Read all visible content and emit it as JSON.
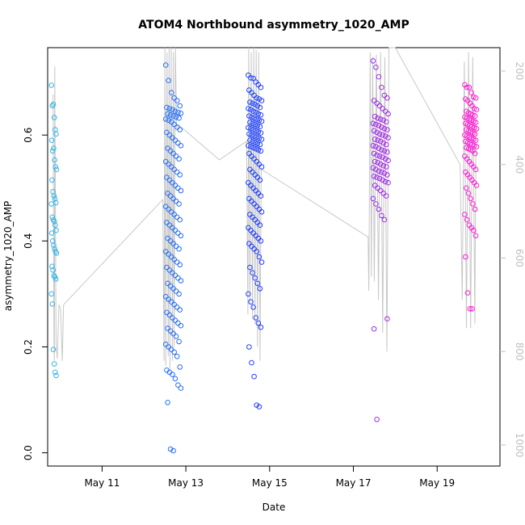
{
  "chart_data": {
    "type": "scatter",
    "title": "ATOM4 Northbound asymmetry_1020_AMP",
    "xlabel": "Date",
    "ylabel": "asymmetry_1020_AMP",
    "xlim": [
      9.7,
      20.5
    ],
    "ylim": [
      -0.025,
      0.765
    ],
    "x_ticks": [
      {
        "value": 11,
        "label": "May 11"
      },
      {
        "value": 13,
        "label": "May 13"
      },
      {
        "value": 15,
        "label": "May 15"
      },
      {
        "value": 17,
        "label": "May 17"
      },
      {
        "value": 19,
        "label": "May 19"
      }
    ],
    "y_ticks": [
      {
        "value": 0.0,
        "label": "0.0"
      },
      {
        "value": 0.2,
        "label": "0.2"
      },
      {
        "value": 0.4,
        "label": "0.4"
      },
      {
        "value": 0.6,
        "label": "0.6"
      }
    ],
    "secondary_axis": {
      "side": "right",
      "reversed": true,
      "ylim": [
        1045,
        150
      ],
      "ticks": [
        {
          "value": 200,
          "label": "200"
        },
        {
          "value": 400,
          "label": "400"
        },
        {
          "value": 600,
          "label": "600"
        },
        {
          "value": 800,
          "label": "800"
        },
        {
          "value": 1000,
          "label": "1000"
        }
      ],
      "color": "#c0c0c0"
    },
    "depth_line": [
      [
        9.83,
        250
      ],
      [
        9.85,
        780
      ],
      [
        9.86,
        820
      ],
      [
        9.87,
        190
      ],
      [
        9.9,
        780
      ],
      [
        9.93,
        815
      ],
      [
        9.97,
        700
      ],
      [
        10.01,
        710
      ],
      [
        10.05,
        820
      ],
      [
        10.08,
        700
      ],
      [
        12.45,
        475
      ],
      [
        12.48,
        820
      ],
      [
        12.5,
        150
      ],
      [
        12.52,
        830
      ],
      [
        12.55,
        160
      ],
      [
        12.58,
        810
      ],
      [
        12.6,
        150
      ],
      [
        12.62,
        840
      ],
      [
        12.65,
        150
      ],
      [
        12.68,
        820
      ],
      [
        12.7,
        160
      ],
      [
        12.72,
        790
      ],
      [
        12.75,
        150
      ],
      [
        12.78,
        320
      ],
      [
        12.82,
        315
      ],
      [
        13.8,
        390
      ],
      [
        14.45,
        350
      ],
      [
        14.48,
        720
      ],
      [
        14.5,
        150
      ],
      [
        14.53,
        700
      ],
      [
        14.56,
        160
      ],
      [
        14.59,
        730
      ],
      [
        14.62,
        150
      ],
      [
        14.65,
        740
      ],
      [
        14.68,
        155
      ],
      [
        14.71,
        790
      ],
      [
        14.74,
        160
      ],
      [
        14.77,
        820
      ],
      [
        14.8,
        410
      ],
      [
        17.35,
        555
      ],
      [
        17.37,
        670
      ],
      [
        17.4,
        160
      ],
      [
        17.43,
        640
      ],
      [
        17.46,
        170
      ],
      [
        17.5,
        650
      ],
      [
        17.55,
        165
      ],
      [
        17.6,
        690
      ],
      [
        17.65,
        160
      ],
      [
        17.7,
        760
      ],
      [
        17.75,
        170
      ],
      [
        17.8,
        800
      ],
      [
        17.85,
        140
      ],
      [
        18.0,
        150
      ],
      [
        19.55,
        400
      ],
      [
        19.6,
        690
      ],
      [
        19.65,
        180
      ],
      [
        19.7,
        750
      ],
      [
        19.75,
        160
      ],
      [
        19.8,
        750
      ],
      [
        19.85,
        170
      ],
      [
        19.9,
        740
      ],
      [
        19.93,
        300
      ]
    ],
    "color_scale": {
      "start": "#33b5e8",
      "mid": "#1e3cff",
      "end": "#ff1ed2"
    },
    "clusters": [
      {
        "day": 9.85,
        "width": 0.12,
        "values": [
          0.694,
          0.655,
          0.658,
          0.633,
          0.61,
          0.602,
          0.59,
          0.57,
          0.575,
          0.553,
          0.54,
          0.535,
          0.515,
          0.493,
          0.485,
          0.48,
          0.472,
          0.47,
          0.445,
          0.44,
          0.437,
          0.43,
          0.42,
          0.415,
          0.4,
          0.392,
          0.385,
          0.38,
          0.377,
          0.352,
          0.345,
          0.334,
          0.332,
          0.328,
          0.3,
          0.281,
          0.195,
          0.168,
          0.152,
          0.146
        ]
      },
      {
        "day": 12.7,
        "width": 0.36,
        "values": [
          0.732,
          0.703,
          0.68,
          0.67,
          0.665,
          0.655,
          0.652,
          0.65,
          0.648,
          0.645,
          0.643,
          0.641,
          0.64,
          0.638,
          0.636,
          0.634,
          0.632,
          0.63,
          0.628,
          0.625,
          0.62,
          0.615,
          0.61,
          0.605,
          0.6,
          0.595,
          0.59,
          0.585,
          0.58,
          0.575,
          0.57,
          0.565,
          0.56,
          0.555,
          0.55,
          0.545,
          0.54,
          0.535,
          0.53,
          0.525,
          0.52,
          0.515,
          0.51,
          0.505,
          0.5,
          0.495,
          0.49,
          0.485,
          0.48,
          0.475,
          0.47,
          0.465,
          0.46,
          0.455,
          0.45,
          0.445,
          0.44,
          0.435,
          0.43,
          0.425,
          0.42,
          0.415,
          0.41,
          0.405,
          0.4,
          0.395,
          0.39,
          0.385,
          0.38,
          0.375,
          0.37,
          0.365,
          0.36,
          0.355,
          0.35,
          0.345,
          0.34,
          0.335,
          0.33,
          0.325,
          0.32,
          0.315,
          0.31,
          0.305,
          0.3,
          0.295,
          0.29,
          0.285,
          0.28,
          0.275,
          0.27,
          0.265,
          0.26,
          0.255,
          0.25,
          0.245,
          0.24,
          0.235,
          0.23,
          0.225,
          0.22,
          0.21,
          0.205,
          0.2,
          0.195,
          0.19,
          0.182,
          0.162,
          0.156,
          0.152,
          0.148,
          0.14,
          0.128,
          0.122,
          0.095,
          0.007,
          0.004
        ]
      },
      {
        "day": 14.65,
        "width": 0.32,
        "values": [
          0.713,
          0.708,
          0.707,
          0.7,
          0.695,
          0.69,
          0.685,
          0.68,
          0.675,
          0.67,
          0.668,
          0.665,
          0.662,
          0.66,
          0.658,
          0.655,
          0.652,
          0.65,
          0.648,
          0.645,
          0.643,
          0.64,
          0.638,
          0.636,
          0.634,
          0.632,
          0.63,
          0.628,
          0.626,
          0.624,
          0.622,
          0.62,
          0.618,
          0.616,
          0.614,
          0.612,
          0.61,
          0.608,
          0.606,
          0.604,
          0.602,
          0.6,
          0.598,
          0.596,
          0.594,
          0.592,
          0.59,
          0.588,
          0.586,
          0.584,
          0.582,
          0.58,
          0.578,
          0.576,
          0.574,
          0.572,
          0.57,
          0.565,
          0.56,
          0.555,
          0.55,
          0.545,
          0.54,
          0.535,
          0.53,
          0.525,
          0.52,
          0.515,
          0.51,
          0.505,
          0.5,
          0.495,
          0.49,
          0.485,
          0.48,
          0.475,
          0.47,
          0.465,
          0.46,
          0.455,
          0.45,
          0.445,
          0.44,
          0.435,
          0.43,
          0.425,
          0.42,
          0.415,
          0.41,
          0.405,
          0.4,
          0.395,
          0.39,
          0.385,
          0.38,
          0.37,
          0.36,
          0.35,
          0.34,
          0.33,
          0.32,
          0.31,
          0.3,
          0.285,
          0.275,
          0.255,
          0.245,
          0.237,
          0.2,
          0.17,
          0.144,
          0.09,
          0.087
        ]
      },
      {
        "day": 17.65,
        "width": 0.36,
        "values": [
          0.74,
          0.728,
          0.71,
          0.69,
          0.675,
          0.67,
          0.665,
          0.66,
          0.655,
          0.65,
          0.645,
          0.64,
          0.635,
          0.632,
          0.63,
          0.628,
          0.625,
          0.622,
          0.62,
          0.618,
          0.615,
          0.612,
          0.61,
          0.608,
          0.605,
          0.602,
          0.6,
          0.598,
          0.595,
          0.592,
          0.59,
          0.588,
          0.585,
          0.582,
          0.58,
          0.578,
          0.575,
          0.572,
          0.57,
          0.568,
          0.565,
          0.562,
          0.56,
          0.558,
          0.555,
          0.552,
          0.55,
          0.548,
          0.545,
          0.542,
          0.54,
          0.538,
          0.535,
          0.532,
          0.53,
          0.528,
          0.525,
          0.522,
          0.52,
          0.518,
          0.515,
          0.512,
          0.51,
          0.505,
          0.5,
          0.495,
          0.49,
          0.485,
          0.48,
          0.47,
          0.46,
          0.448,
          0.44,
          0.253,
          0.234,
          0.063
        ]
      },
      {
        "day": 19.8,
        "width": 0.28,
        "values": [
          0.695,
          0.69,
          0.69,
          0.68,
          0.672,
          0.67,
          0.668,
          0.665,
          0.66,
          0.655,
          0.65,
          0.648,
          0.645,
          0.642,
          0.64,
          0.638,
          0.636,
          0.634,
          0.632,
          0.63,
          0.628,
          0.626,
          0.624,
          0.622,
          0.62,
          0.618,
          0.616,
          0.614,
          0.612,
          0.61,
          0.608,
          0.606,
          0.604,
          0.602,
          0.6,
          0.598,
          0.596,
          0.594,
          0.592,
          0.59,
          0.588,
          0.586,
          0.584,
          0.582,
          0.58,
          0.578,
          0.576,
          0.574,
          0.572,
          0.57,
          0.565,
          0.56,
          0.555,
          0.55,
          0.545,
          0.54,
          0.535,
          0.53,
          0.525,
          0.52,
          0.515,
          0.51,
          0.505,
          0.5,
          0.49,
          0.48,
          0.47,
          0.46,
          0.45,
          0.44,
          0.43,
          0.425,
          0.42,
          0.41,
          0.37,
          0.302,
          0.272,
          0.272
        ]
      }
    ]
  }
}
